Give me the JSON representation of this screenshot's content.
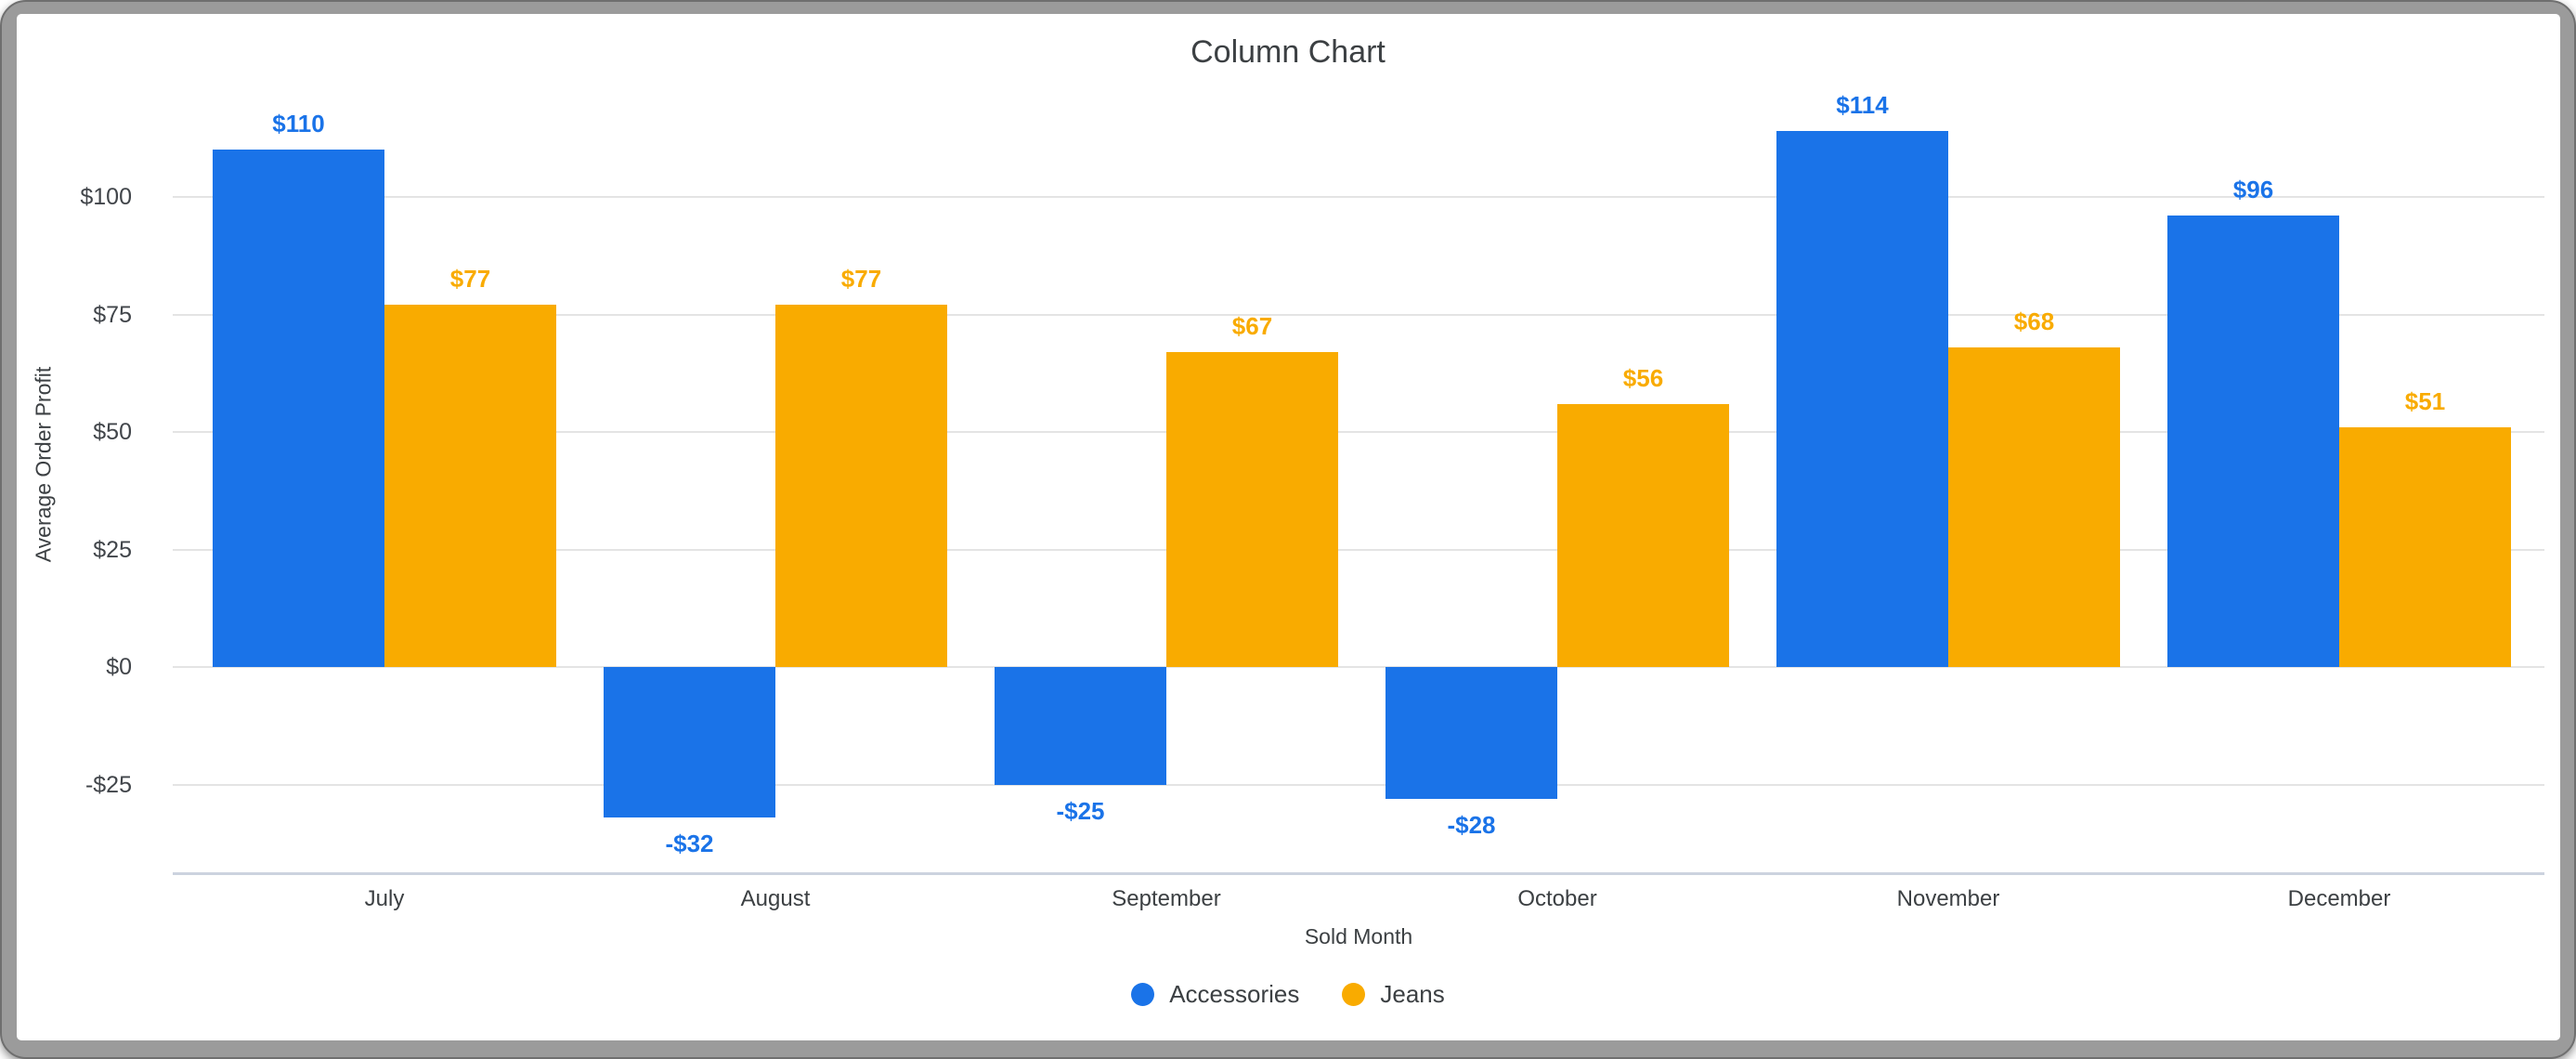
{
  "window": {
    "frame_color": "#9b9b9b",
    "background_color": "#ffffff"
  },
  "chart_data": {
    "type": "bar",
    "title": "Column Chart",
    "xlabel": "Sold Month",
    "ylabel": "Average Order Profit",
    "categories": [
      "July",
      "August",
      "September",
      "October",
      "November",
      "December"
    ],
    "series": [
      {
        "name": "Accessories",
        "color": "#1a73e8",
        "values": [
          110,
          -32,
          -25,
          -28,
          114,
          96
        ],
        "labels": [
          "$110",
          "-$32",
          "-$25",
          "-$28",
          "$114",
          "$96"
        ]
      },
      {
        "name": "Jeans",
        "color": "#f9ab00",
        "values": [
          77,
          77,
          67,
          56,
          68,
          51
        ],
        "labels": [
          "$77",
          "$77",
          "$67",
          "$56",
          "$68",
          "$51"
        ]
      }
    ],
    "yticks": [
      {
        "label": "$100",
        "value": 100
      },
      {
        "label": "$75",
        "value": 75
      },
      {
        "label": "$50",
        "value": 50
      },
      {
        "label": "$25",
        "value": 25
      },
      {
        "label": "$0",
        "value": 0
      },
      {
        "label": "-$25",
        "value": -25
      }
    ],
    "ylim": [
      -44,
      119
    ],
    "grid": true,
    "legend_position": "bottom",
    "gridline_color": "#e4e4e4",
    "axis_line_color": "#ccd3df",
    "text_color": "#3c4043"
  }
}
